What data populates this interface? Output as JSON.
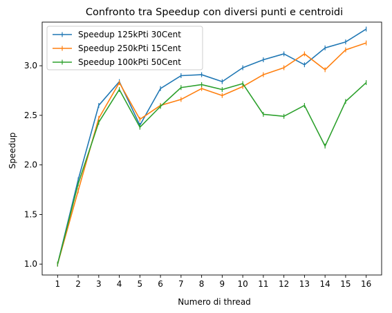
{
  "chart_data": {
    "type": "line",
    "title": "Confronto tra Speedup con diversi punti e centroidi",
    "xlabel": "Numero di thread",
    "ylabel": "Speedup",
    "x": [
      1,
      2,
      3,
      4,
      5,
      6,
      7,
      8,
      9,
      10,
      11,
      12,
      13,
      14,
      15,
      16
    ],
    "xlim": [
      0.25,
      16.75
    ],
    "ylim": [
      0.89,
      3.44
    ],
    "yticks": [
      1.0,
      1.5,
      2.0,
      2.5,
      3.0
    ],
    "yticklabels": [
      "1.0",
      "1.5",
      "2.0",
      "2.5",
      "3.0"
    ],
    "grid": false,
    "legend_position": "upper-left",
    "series": [
      {
        "name": "Speedup 125kPti 30Cent",
        "color": "#1f77b4",
        "values": [
          1.0,
          1.85,
          2.6,
          2.84,
          2.4,
          2.77,
          2.9,
          2.91,
          2.84,
          2.98,
          3.06,
          3.12,
          3.01,
          3.18,
          3.24,
          3.37
        ]
      },
      {
        "name": "Speedup 250kPti 15Cent",
        "color": "#ff7f0e",
        "values": [
          1.0,
          1.74,
          2.47,
          2.83,
          2.46,
          2.6,
          2.66,
          2.77,
          2.7,
          2.79,
          2.91,
          2.98,
          3.12,
          2.96,
          3.16,
          3.23
        ]
      },
      {
        "name": "Speedup 100kPti 50Cent",
        "color": "#2ca02c",
        "values": [
          1.0,
          1.81,
          2.43,
          2.76,
          2.38,
          2.59,
          2.78,
          2.81,
          2.76,
          2.82,
          2.51,
          2.49,
          2.6,
          2.19,
          2.64,
          2.83
        ]
      }
    ]
  }
}
